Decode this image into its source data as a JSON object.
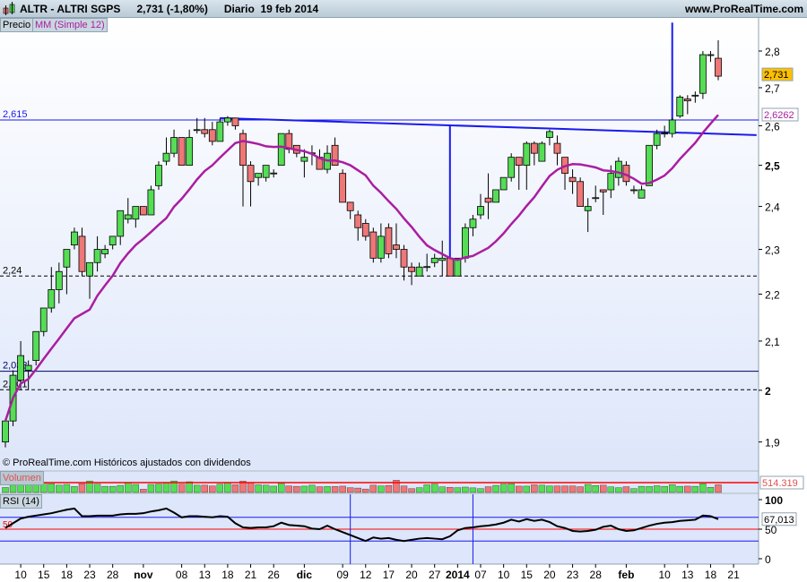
{
  "header": {
    "symbol": "ALTR - ALTRI SGPS",
    "quote": "2,731 (-1,80%)",
    "period": "Diario  19 feb 2014",
    "site": "www.ProRealTime.com"
  },
  "legend": {
    "price_label": "Precio",
    "ma_label": "MM (Simple 12)"
  },
  "footer_note": "© ProRealTime.com  Históricos ajustados con dividendos",
  "colors": {
    "up": "#55dd55",
    "down": "#ee7777",
    "ma": "#aa1ea0",
    "lines": "#1a1aee",
    "last_price_bg": "#ffc000",
    "ma_value": "#aa1ea0",
    "rsi_mid": "#ff0000"
  },
  "chart_data": [
    {
      "type": "candlestick",
      "title": "ALTR - ALTRI SGPS",
      "scale": "log",
      "ylim": [
        1.86,
        2.88
      ],
      "y_ticks": [
        {
          "v": 2.8,
          "label": "2,8"
        },
        {
          "v": 2.7,
          "label": "2,7"
        },
        {
          "v": 2.6,
          "label": "2,6"
        },
        {
          "v": 2.5,
          "label": "2,5"
        },
        {
          "v": 2.4,
          "label": "2,4"
        },
        {
          "v": 2.3,
          "label": "2,3"
        },
        {
          "v": 2.2,
          "label": "2,2"
        },
        {
          "v": 2.1,
          "label": "2,1"
        },
        {
          "v": 2,
          "label": "2"
        },
        {
          "v": 1.9,
          "label": "1,9"
        }
      ],
      "x_ticks": [
        {
          "bar": 2,
          "label": "10"
        },
        {
          "bar": 5,
          "label": "15"
        },
        {
          "bar": 8,
          "label": "18"
        },
        {
          "bar": 11,
          "label": "23"
        },
        {
          "bar": 14,
          "label": "28"
        },
        {
          "bar": 18,
          "label": "nov",
          "bold": true
        },
        {
          "bar": 23,
          "label": "08"
        },
        {
          "bar": 26,
          "label": "13"
        },
        {
          "bar": 29,
          "label": "18"
        },
        {
          "bar": 32,
          "label": "21"
        },
        {
          "bar": 35,
          "label": "26"
        },
        {
          "bar": 39,
          "label": "dic",
          "bold": true
        },
        {
          "bar": 44,
          "label": "09"
        },
        {
          "bar": 47,
          "label": "12"
        },
        {
          "bar": 50,
          "label": "17"
        },
        {
          "bar": 53,
          "label": "20"
        },
        {
          "bar": 56,
          "label": "27"
        },
        {
          "bar": 59,
          "label": "2014",
          "bold": true
        },
        {
          "bar": 62,
          "label": "07"
        },
        {
          "bar": 65,
          "label": "10"
        },
        {
          "bar": 68,
          "label": "15"
        },
        {
          "bar": 71,
          "label": "20"
        },
        {
          "bar": 74,
          "label": "23"
        },
        {
          "bar": 77,
          "label": "28"
        },
        {
          "bar": 81,
          "label": "feb",
          "bold": true
        },
        {
          "bar": 86,
          "label": "10"
        },
        {
          "bar": 89,
          "label": "13"
        },
        {
          "bar": 92,
          "label": "18"
        },
        {
          "bar": 95,
          "label": "21"
        }
      ],
      "ohlc": [
        [
          1.9,
          1.94,
          1.89,
          1.94
        ],
        [
          1.94,
          2.04,
          1.93,
          2.03
        ],
        [
          2.02,
          2.1,
          2.0,
          2.07
        ],
        [
          2.04,
          2.06,
          2.0,
          2.05
        ],
        [
          2.06,
          2.12,
          2.05,
          2.12
        ],
        [
          2.12,
          2.17,
          2.11,
          2.17
        ],
        [
          2.17,
          2.26,
          2.16,
          2.21
        ],
        [
          2.21,
          2.27,
          2.18,
          2.25
        ],
        [
          2.26,
          2.3,
          2.2,
          2.3
        ],
        [
          2.31,
          2.35,
          2.3,
          2.34
        ],
        [
          2.33,
          2.35,
          2.24,
          2.25
        ],
        [
          2.24,
          2.27,
          2.19,
          2.27
        ],
        [
          2.27,
          2.33,
          2.25,
          2.3
        ],
        [
          2.29,
          2.31,
          2.28,
          2.3
        ],
        [
          2.31,
          2.33,
          2.3,
          2.33
        ],
        [
          2.33,
          2.39,
          2.31,
          2.39
        ],
        [
          2.37,
          2.42,
          2.36,
          2.38
        ],
        [
          2.37,
          2.4,
          2.35,
          2.4
        ],
        [
          2.4,
          2.4,
          2.38,
          2.38
        ],
        [
          2.38,
          2.45,
          2.38,
          2.44
        ],
        [
          2.45,
          2.51,
          2.44,
          2.5
        ],
        [
          2.51,
          2.57,
          2.5,
          2.53
        ],
        [
          2.53,
          2.59,
          2.52,
          2.57
        ],
        [
          2.57,
          2.57,
          2.5,
          2.5
        ],
        [
          2.5,
          2.59,
          2.5,
          2.57
        ],
        [
          2.59,
          2.62,
          2.58,
          2.59
        ],
        [
          2.59,
          2.62,
          2.57,
          2.58
        ],
        [
          2.59,
          2.61,
          2.55,
          2.56
        ],
        [
          2.56,
          2.62,
          2.56,
          2.61
        ],
        [
          2.61,
          2.625,
          2.6,
          2.62
        ],
        [
          2.62,
          2.62,
          2.59,
          2.6
        ],
        [
          2.58,
          2.59,
          2.4,
          2.5
        ],
        [
          2.5,
          2.51,
          2.4,
          2.46
        ],
        [
          2.47,
          2.48,
          2.45,
          2.48
        ],
        [
          2.47,
          2.5,
          2.46,
          2.5
        ],
        [
          2.48,
          2.49,
          2.47,
          2.481
        ],
        [
          2.5,
          2.58,
          2.5,
          2.58
        ],
        [
          2.58,
          2.59,
          2.53,
          2.54
        ],
        [
          2.55,
          2.55,
          2.52,
          2.53
        ],
        [
          2.51,
          2.54,
          2.47,
          2.52
        ],
        [
          2.53,
          2.55,
          2.5,
          2.531
        ],
        [
          2.52,
          2.54,
          2.49,
          2.49
        ],
        [
          2.49,
          2.55,
          2.48,
          2.53
        ],
        [
          2.55,
          2.57,
          2.5,
          2.5
        ],
        [
          2.48,
          2.49,
          2.41,
          2.41
        ],
        [
          2.41,
          2.41,
          2.37,
          2.39
        ],
        [
          2.38,
          2.39,
          2.32,
          2.35
        ],
        [
          2.36,
          2.37,
          2.32,
          2.33
        ],
        [
          2.34,
          2.35,
          2.27,
          2.28
        ],
        [
          2.28,
          2.36,
          2.27,
          2.33
        ],
        [
          2.35,
          2.36,
          2.28,
          2.29
        ],
        [
          2.31,
          2.36,
          2.28,
          2.3
        ],
        [
          2.3,
          2.31,
          2.23,
          2.26
        ],
        [
          2.26,
          2.27,
          2.22,
          2.25
        ],
        [
          2.24,
          2.27,
          2.24,
          2.26
        ],
        [
          2.26,
          2.29,
          2.25,
          2.261
        ],
        [
          2.27,
          2.29,
          2.26,
          2.28
        ],
        [
          2.275,
          2.32,
          2.24,
          2.28
        ],
        [
          2.28,
          2.28,
          2.24,
          2.24
        ],
        [
          2.24,
          2.28,
          2.24,
          2.28
        ],
        [
          2.28,
          2.36,
          2.27,
          2.35
        ],
        [
          2.35,
          2.38,
          2.33,
          2.37
        ],
        [
          2.38,
          2.43,
          2.37,
          2.4
        ],
        [
          2.42,
          2.48,
          2.37,
          2.41
        ],
        [
          2.41,
          2.44,
          2.41,
          2.44
        ],
        [
          2.44,
          2.47,
          2.44,
          2.47
        ],
        [
          2.47,
          2.53,
          2.46,
          2.52
        ],
        [
          2.52,
          2.52,
          2.44,
          2.5
        ],
        [
          2.5,
          2.56,
          2.44,
          2.555
        ],
        [
          2.555,
          2.56,
          2.5,
          2.53
        ],
        [
          2.51,
          2.56,
          2.51,
          2.555
        ],
        [
          2.57,
          2.59,
          2.55,
          2.585
        ],
        [
          2.555,
          2.575,
          2.5,
          2.53
        ],
        [
          2.52,
          2.52,
          2.44,
          2.48
        ],
        [
          2.47,
          2.49,
          2.43,
          2.46
        ],
        [
          2.46,
          2.47,
          2.4,
          2.4
        ],
        [
          2.39,
          2.42,
          2.34,
          2.4
        ],
        [
          2.42,
          2.45,
          2.41,
          2.421
        ],
        [
          2.44,
          2.44,
          2.38,
          2.435
        ],
        [
          2.44,
          2.5,
          2.42,
          2.48
        ],
        [
          2.47,
          2.52,
          2.45,
          2.51
        ],
        [
          2.5,
          2.51,
          2.45,
          2.46
        ],
        [
          2.44,
          2.45,
          2.43,
          2.44
        ],
        [
          2.42,
          2.45,
          2.42,
          2.44
        ],
        [
          2.45,
          2.55,
          2.45,
          2.55
        ],
        [
          2.55,
          2.59,
          2.54,
          2.58
        ],
        [
          2.58,
          2.6,
          2.57,
          2.581
        ],
        [
          2.58,
          2.62,
          2.57,
          2.615
        ],
        [
          2.625,
          2.68,
          2.62,
          2.675
        ],
        [
          2.67,
          2.68,
          2.63,
          2.665
        ],
        [
          2.68,
          2.69,
          2.66,
          2.68
        ],
        [
          2.685,
          2.8,
          2.67,
          2.79
        ],
        [
          2.79,
          2.8,
          2.77,
          2.79
        ],
        [
          2.78,
          2.83,
          2.72,
          2.731
        ]
      ],
      "moving_average": {
        "name": "MM (Simple 12)",
        "period": 12,
        "last_value": "2,6262"
      },
      "last_price": "2,731",
      "horizontal_lines": [
        {
          "value": 2.615,
          "label": "2,615",
          "style": "solid",
          "color": "#1a1aee"
        },
        {
          "value": 2.24,
          "label": "2,24",
          "style": "dashed",
          "color": "#000000"
        },
        {
          "value": 2.038,
          "label": "2,038",
          "style": "solid",
          "color": "#000066"
        },
        {
          "value": 2.001,
          "label": "2,001",
          "style": "dashed",
          "color": "#000000"
        }
      ],
      "trendline": {
        "from": {
          "bar": 28,
          "price": 2.62
        },
        "to": {
          "bar": 98,
          "price": 2.576
        }
      },
      "vertical_segments": [
        {
          "bar": 58,
          "from": 2.6,
          "to": 2.24
        },
        {
          "bar": 87,
          "from": 2.615,
          "to": 2.88
        }
      ]
    },
    {
      "type": "bar",
      "title": "Volumen",
      "unit": "k",
      "reference_value": "514.319",
      "reference": 514.319,
      "values": [
        260,
        380,
        470,
        480,
        560,
        520,
        460,
        380,
        420,
        310,
        460,
        600,
        430,
        320,
        320,
        370,
        500,
        420,
        170,
        420,
        440,
        500,
        600,
        430,
        560,
        380,
        380,
        340,
        430,
        510,
        400,
        590,
        520,
        400,
        380,
        330,
        470,
        340,
        320,
        330,
        380,
        300,
        310,
        310,
        330,
        250,
        230,
        180,
        380,
        340,
        360,
        640,
        340,
        200,
        250,
        400,
        440,
        290,
        270,
        250,
        280,
        240,
        200,
        300,
        370,
        440,
        460,
        330,
        330,
        400,
        380,
        340,
        340,
        340,
        340,
        300,
        420,
        360,
        380,
        290,
        250,
        300,
        200,
        320,
        310,
        350,
        320,
        410,
        320,
        330,
        320,
        460,
        270,
        400
      ]
    },
    {
      "type": "line",
      "title": "RSI (14)",
      "ylim": [
        0,
        100
      ],
      "y_ticks": [
        {
          "v": 100,
          "label": "100"
        },
        {
          "v": 50,
          "label": "50"
        },
        {
          "v": 0,
          "label": "0"
        }
      ],
      "levels": [
        70,
        50,
        30
      ],
      "mid_label": "50",
      "last_value": "67,013",
      "vertical_markers": [
        {
          "bar": 45
        },
        {
          "bar": 61
        }
      ],
      "values": [
        52,
        60,
        68,
        71,
        73,
        75,
        77,
        80,
        83,
        85,
        72,
        72,
        73,
        73,
        73,
        75,
        76,
        76,
        77,
        80,
        82,
        85,
        78,
        70,
        72,
        72,
        71,
        70,
        72,
        71,
        60,
        53,
        52,
        53,
        53,
        55,
        61,
        57,
        56,
        55,
        51,
        50,
        56,
        50,
        45,
        40,
        35,
        30,
        36,
        34,
        35,
        32,
        30,
        32,
        34,
        35,
        34,
        33,
        38,
        48,
        52,
        53,
        55,
        56,
        58,
        61,
        66,
        63,
        67,
        64,
        66,
        62,
        55,
        52,
        47,
        46,
        47,
        49,
        54,
        56,
        50,
        47,
        48,
        52,
        56,
        59,
        61,
        62,
        64,
        65,
        66,
        73,
        72,
        67.013
      ]
    }
  ]
}
